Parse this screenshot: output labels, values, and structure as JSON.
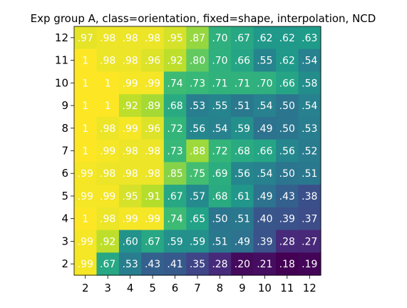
{
  "chart_data": {
    "type": "heatmap",
    "title": "Exp group A, class=orientation, fixed=shape, interpolation, NCD",
    "xlabel": "",
    "ylabel": "",
    "x": [
      "2",
      "3",
      "4",
      "5",
      "6",
      "7",
      "8",
      "9",
      "10",
      "11",
      "12"
    ],
    "y": [
      "12",
      "11",
      "10",
      "9",
      "8",
      "7",
      "6",
      "5",
      "4",
      "3",
      "2"
    ],
    "values": [
      [
        0.97,
        0.98,
        0.98,
        0.98,
        0.95,
        0.87,
        0.7,
        0.67,
        0.62,
        0.62,
        0.63
      ],
      [
        1.0,
        0.98,
        0.98,
        0.96,
        0.92,
        0.8,
        0.7,
        0.66,
        0.55,
        0.62,
        0.54
      ],
      [
        1.0,
        1.0,
        0.99,
        0.99,
        0.74,
        0.73,
        0.71,
        0.71,
        0.7,
        0.66,
        0.58
      ],
      [
        1.0,
        1.0,
        0.92,
        0.89,
        0.68,
        0.53,
        0.55,
        0.51,
        0.54,
        0.5,
        0.54
      ],
      [
        1.0,
        0.98,
        0.99,
        0.96,
        0.72,
        0.56,
        0.54,
        0.59,
        0.49,
        0.5,
        0.53
      ],
      [
        1.0,
        0.99,
        0.98,
        0.98,
        0.73,
        0.88,
        0.72,
        0.68,
        0.66,
        0.56,
        0.52
      ],
      [
        0.99,
        0.98,
        0.98,
        0.98,
        0.85,
        0.75,
        0.69,
        0.56,
        0.54,
        0.5,
        0.51
      ],
      [
        0.99,
        0.99,
        0.95,
        0.91,
        0.67,
        0.57,
        0.68,
        0.61,
        0.49,
        0.43,
        0.38
      ],
      [
        1.0,
        0.98,
        0.99,
        0.99,
        0.74,
        0.65,
        0.5,
        0.51,
        0.4,
        0.39,
        0.37
      ],
      [
        0.99,
        0.92,
        0.6,
        0.67,
        0.59,
        0.59,
        0.51,
        0.49,
        0.39,
        0.28,
        0.27
      ],
      [
        0.99,
        0.67,
        0.53,
        0.43,
        0.41,
        0.35,
        0.28,
        0.2,
        0.21,
        0.18,
        0.19
      ]
    ],
    "cell_labels": [
      [
        ".97",
        ".98",
        ".98",
        ".98",
        ".95",
        ".87",
        ".70",
        ".67",
        ".62",
        ".62",
        ".63"
      ],
      [
        "1",
        ".98",
        ".98",
        ".96",
        ".92",
        ".80",
        ".70",
        ".66",
        ".55",
        ".62",
        ".54"
      ],
      [
        "1",
        "1",
        ".99",
        ".99",
        ".74",
        ".73",
        ".71",
        ".71",
        ".70",
        ".66",
        ".58"
      ],
      [
        "1",
        "1",
        ".92",
        ".89",
        ".68",
        ".53",
        ".55",
        ".51",
        ".54",
        ".50",
        ".54"
      ],
      [
        "1",
        ".98",
        ".99",
        ".96",
        ".72",
        ".56",
        ".54",
        ".59",
        ".49",
        ".50",
        ".53"
      ],
      [
        "1",
        ".99",
        ".98",
        ".98",
        ".73",
        ".88",
        ".72",
        ".68",
        ".66",
        ".56",
        ".52"
      ],
      [
        ".99",
        ".98",
        ".98",
        ".98",
        ".85",
        ".75",
        ".69",
        ".56",
        ".54",
        ".50",
        ".51"
      ],
      [
        ".99",
        ".99",
        ".95",
        ".91",
        ".67",
        ".57",
        ".68",
        ".61",
        ".49",
        ".43",
        ".38"
      ],
      [
        "1",
        ".98",
        ".99",
        ".99",
        ".74",
        ".65",
        ".50",
        ".51",
        ".40",
        ".39",
        ".37"
      ],
      [
        ".99",
        ".92",
        ".60",
        ".67",
        ".59",
        ".59",
        ".51",
        ".49",
        ".39",
        ".28",
        ".27"
      ],
      [
        ".99",
        ".67",
        ".53",
        ".43",
        ".41",
        ".35",
        ".28",
        ".20",
        ".21",
        ".18",
        ".19"
      ]
    ],
    "colormap": "viridis",
    "vmin": 0.18,
    "vmax": 1.0,
    "grid": false,
    "legend": "none"
  }
}
